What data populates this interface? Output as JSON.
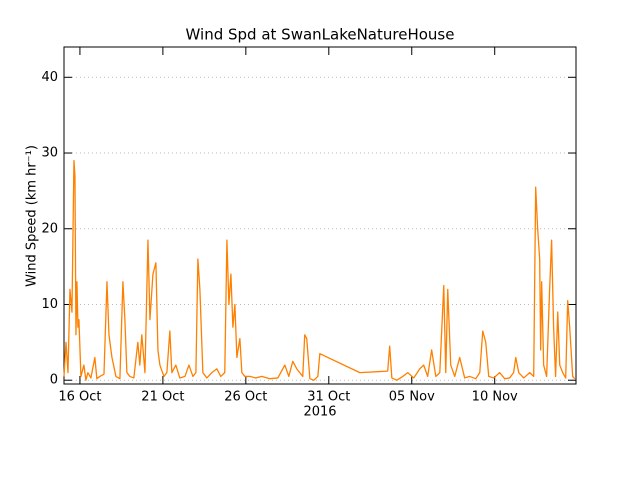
{
  "chart_data": {
    "type": "line",
    "title": "Wind Spd at SwanLakeNatureHouse",
    "ylabel": "Wind Speed (km hr⁻¹)",
    "xlabel": "2016",
    "xlim": [
      -0.96,
      29.9
    ],
    "ylim": [
      -0.5,
      44
    ],
    "xticks": [
      {
        "value": 0,
        "label": "16 Oct"
      },
      {
        "value": 5,
        "label": "21 Oct"
      },
      {
        "value": 10,
        "label": "26 Oct"
      },
      {
        "value": 15,
        "label": "31 Oct"
      },
      {
        "value": 20,
        "label": "05 Nov"
      },
      {
        "value": 25,
        "label": "10 Nov"
      }
    ],
    "yticks": [
      0,
      10,
      20,
      30,
      40
    ],
    "grid": true,
    "series": [
      {
        "name": "Wind Spd",
        "color": "#ff8000",
        "x": [
          -0.96,
          -0.84,
          -0.72,
          -0.6,
          -0.48,
          -0.36,
          -0.3,
          -0.24,
          -0.18,
          -0.12,
          -0.06,
          0.06,
          0.24,
          0.36,
          0.48,
          0.66,
          0.9,
          1.02,
          1.2,
          1.45,
          1.63,
          1.75,
          1.93,
          2.17,
          2.41,
          2.59,
          2.71,
          2.83,
          3.01,
          3.25,
          3.49,
          3.61,
          3.73,
          3.92,
          4.1,
          4.22,
          4.4,
          4.58,
          4.7,
          4.82,
          5.06,
          5.24,
          5.42,
          5.54,
          5.78,
          6.02,
          6.33,
          6.57,
          6.81,
          6.99,
          7.11,
          7.23,
          7.41,
          7.65,
          7.95,
          8.25,
          8.49,
          8.73,
          8.86,
          8.98,
          9.1,
          9.22,
          9.34,
          9.46,
          9.64,
          9.76,
          9.94,
          10.24,
          10.6,
          10.96,
          11.45,
          11.93,
          12.35,
          12.59,
          12.83,
          13.07,
          13.25,
          13.43,
          13.55,
          13.67,
          13.86,
          14.1,
          14.34,
          14.46,
          16.87,
          18.55,
          18.67,
          18.8,
          19.1,
          19.46,
          19.76,
          20.12,
          20.48,
          20.72,
          20.96,
          21.2,
          21.45,
          21.69,
          21.93,
          22.05,
          22.17,
          22.35,
          22.59,
          22.89,
          23.19,
          23.49,
          23.86,
          24.1,
          24.28,
          24.46,
          24.64,
          24.94,
          25.3,
          25.6,
          25.9,
          26.14,
          26.27,
          26.45,
          26.75,
          27.11,
          27.35,
          27.47,
          27.59,
          27.71,
          27.77,
          27.83,
          27.95,
          28.13,
          28.31,
          28.43,
          28.55,
          28.67,
          28.8,
          28.92,
          29.1,
          29.28,
          29.4,
          29.52,
          29.7,
          29.82
        ],
        "values": [
          0.5,
          5,
          1,
          12,
          9,
          29,
          27,
          6,
          13,
          7,
          8,
          0.5,
          2,
          0,
          1,
          0.3,
          3,
          0.2,
          0.5,
          0.8,
          13,
          6,
          3,
          0.5,
          0.2,
          13,
          8,
          1,
          0.5,
          0.3,
          5,
          2,
          6,
          1,
          18.5,
          8,
          14,
          15.5,
          4,
          2,
          0.5,
          1,
          6.5,
          1,
          2,
          0.3,
          0.5,
          2,
          0.5,
          1,
          16,
          12,
          1,
          0.3,
          1,
          1.5,
          0.5,
          1,
          18.5,
          10,
          14,
          7,
          10,
          3,
          5.5,
          1,
          0.5,
          0.5,
          0.3,
          0.5,
          0.2,
          0.3,
          2,
          0.5,
          2.5,
          1.5,
          1,
          0.5,
          6,
          5.5,
          0.2,
          0,
          0.5,
          3.5,
          1,
          1.2,
          4.5,
          0.3,
          0,
          0.5,
          1,
          0.3,
          1.5,
          2,
          0.5,
          4,
          0.5,
          1,
          12.5,
          1,
          12,
          2,
          0.5,
          3,
          0.3,
          0.5,
          0.2,
          1,
          6.5,
          5,
          0.5,
          0.3,
          1,
          0.2,
          0.3,
          1,
          3,
          1,
          0.3,
          1,
          0.5,
          25.5,
          20,
          16,
          4,
          13,
          2,
          0.5,
          12,
          18.5,
          7,
          0.5,
          9,
          2,
          1,
          0.3,
          10.5,
          7,
          0.5,
          0.2
        ]
      }
    ]
  }
}
